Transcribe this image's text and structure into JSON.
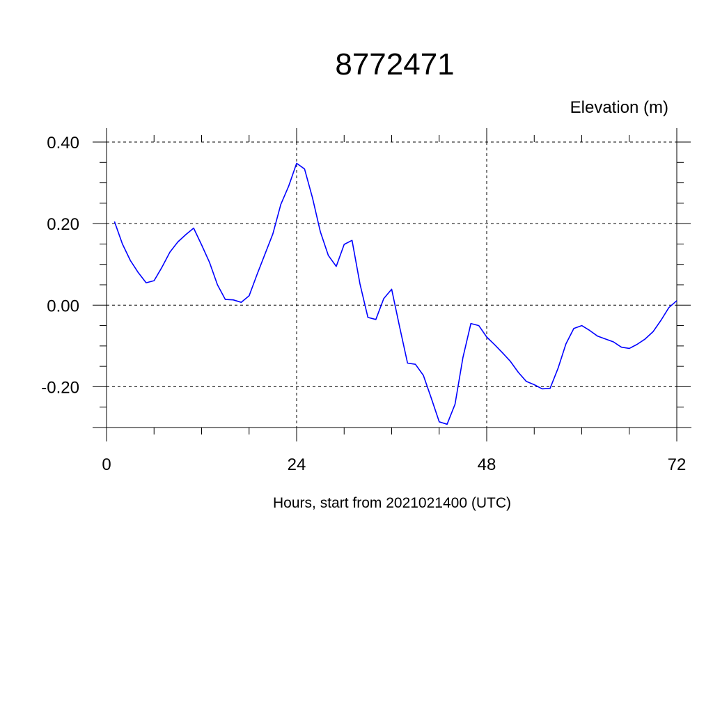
{
  "chart_data": {
    "type": "line",
    "title": "8772471",
    "ylabel": "Elevation (m)",
    "xlabel": "Hours, start from 2021021400 (UTC)",
    "xlim": [
      0,
      72
    ],
    "ylim": [
      -0.3,
      0.4
    ],
    "xticks": [
      0,
      24,
      48,
      72
    ],
    "xtick_labels": [
      "0",
      "24",
      "48",
      "72"
    ],
    "yticks": [
      0.4,
      0.2,
      0.0,
      -0.2
    ],
    "ytick_labels": [
      "0.40",
      "0.20",
      "0.00",
      "-0.20"
    ],
    "grid": true,
    "line_color": "#0000ff",
    "series": [
      {
        "x": [
          1,
          2,
          3,
          4,
          5,
          6,
          7,
          8,
          9,
          10,
          11,
          12,
          13,
          14,
          15,
          16,
          17,
          18,
          19,
          20,
          21,
          22,
          23,
          24,
          25,
          26,
          27,
          28,
          29,
          30,
          31,
          32,
          33,
          34,
          35,
          36,
          37,
          38,
          39,
          40,
          41,
          42,
          43,
          44,
          45,
          46,
          47,
          48,
          49,
          50,
          51,
          52,
          53,
          54,
          55,
          56,
          57,
          58,
          59,
          60,
          61,
          62,
          63,
          64,
          65,
          66,
          67,
          68,
          69,
          70,
          71,
          72
        ],
        "values": [
          0.205,
          0.15,
          0.11,
          0.08,
          0.055,
          0.06,
          0.093,
          0.13,
          0.155,
          0.173,
          0.189,
          0.148,
          0.105,
          0.05,
          0.014,
          0.013,
          0.007,
          0.023,
          0.075,
          0.125,
          0.175,
          0.247,
          0.292,
          0.348,
          0.334,
          0.263,
          0.18,
          0.122,
          0.095,
          0.149,
          0.159,
          0.052,
          -0.03,
          -0.035,
          0.016,
          0.039,
          -0.053,
          -0.142,
          -0.145,
          -0.172,
          -0.228,
          -0.286,
          -0.292,
          -0.243,
          -0.128,
          -0.045,
          -0.05,
          -0.078,
          -0.097,
          -0.117,
          -0.138,
          -0.165,
          -0.187,
          -0.195,
          -0.205,
          -0.204,
          -0.155,
          -0.095,
          -0.057,
          -0.05,
          -0.062,
          -0.076,
          -0.083,
          -0.09,
          -0.103,
          -0.106,
          -0.096,
          -0.083,
          -0.065,
          -0.037,
          -0.006,
          0.011
        ]
      }
    ]
  }
}
